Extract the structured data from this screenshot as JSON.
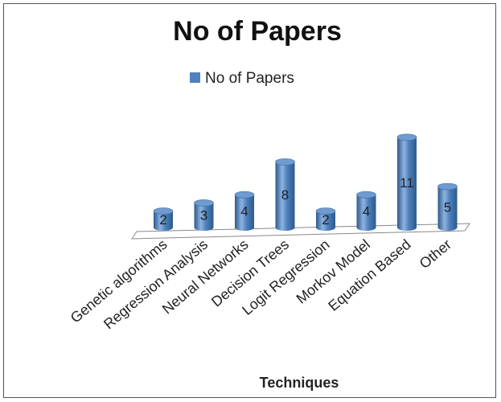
{
  "chart_data": {
    "type": "bar",
    "title": "No of Papers",
    "xlabel": "Techniques",
    "ylabel": "",
    "categories": [
      "Genetic algorithms",
      "Regression Analysis",
      "Neural Networks",
      "Decision Trees",
      "Logit Regression",
      "Morkov Model",
      "Equation Based",
      "Other"
    ],
    "series": [
      {
        "name": "No of Papers",
        "values": [
          2,
          3,
          4,
          8,
          2,
          4,
          11,
          5
        ]
      }
    ],
    "legend_position": "top",
    "grid": false,
    "bar_style": "3d-cylinder",
    "colors": {
      "bar": "#4f81bd",
      "bar_dark": "#2c5a8c",
      "bar_light": "#8fb3e0"
    }
  }
}
